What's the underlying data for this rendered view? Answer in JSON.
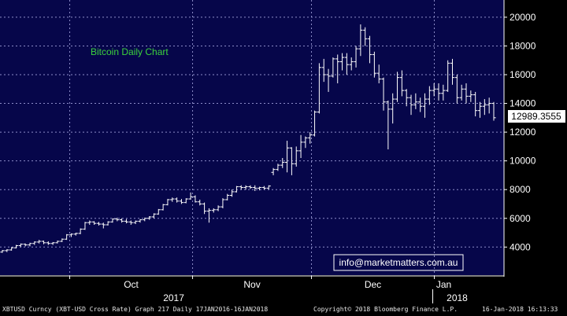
{
  "chart_data": {
    "type": "ohlc",
    "title": "Bitcoin Daily Chart",
    "ylim": [
      2000,
      21000
    ],
    "yticks": [
      4000,
      6000,
      8000,
      10000,
      12000,
      14000,
      16000,
      18000,
      20000
    ],
    "ytick_labels": [
      "4000",
      "6000",
      "8000",
      "10000",
      "12000",
      "14000",
      "16000",
      "18000",
      "20000"
    ],
    "last_price": 12989.3555,
    "last_price_label": "12989.3555",
    "months": [
      "Oct",
      "Nov",
      "Dec",
      "Jan"
    ],
    "years": [
      "2017",
      "2018"
    ],
    "watermark": "info@marketmatters.com.au",
    "date_range": [
      "2017-09-14",
      "2018-01-16"
    ],
    "bars": [
      [
        3650,
        3800,
        3600,
        3750
      ],
      [
        3750,
        3850,
        3650,
        3800
      ],
      [
        3800,
        4000,
        3750,
        3950
      ],
      [
        3950,
        4150,
        3900,
        4100
      ],
      [
        4100,
        4250,
        4000,
        4200
      ],
      [
        4200,
        4250,
        4050,
        4150
      ],
      [
        4150,
        4300,
        4050,
        4250
      ],
      [
        4250,
        4400,
        4150,
        4350
      ],
      [
        4350,
        4500,
        4250,
        4400
      ],
      [
        4400,
        4450,
        4200,
        4300
      ],
      [
        4300,
        4400,
        4150,
        4250
      ],
      [
        4250,
        4350,
        4150,
        4300
      ],
      [
        4300,
        4450,
        4250,
        4400
      ],
      [
        4400,
        4600,
        4350,
        4550
      ],
      [
        4550,
        4900,
        4500,
        4850
      ],
      [
        4850,
        4950,
        4700,
        4900
      ],
      [
        4900,
        5000,
        4800,
        4950
      ],
      [
        4950,
        5300,
        4900,
        5250
      ],
      [
        5250,
        5750,
        5200,
        5700
      ],
      [
        5700,
        5850,
        5550,
        5750
      ],
      [
        5750,
        5800,
        5550,
        5650
      ],
      [
        5650,
        5750,
        5500,
        5600
      ],
      [
        5600,
        5700,
        5300,
        5550
      ],
      [
        5550,
        5800,
        5500,
        5750
      ],
      [
        5750,
        6000,
        5700,
        5950
      ],
      [
        5950,
        6050,
        5800,
        5900
      ],
      [
        5900,
        6000,
        5700,
        5800
      ],
      [
        5800,
        5950,
        5650,
        5750
      ],
      [
        5750,
        5850,
        5550,
        5700
      ],
      [
        5700,
        5850,
        5600,
        5800
      ],
      [
        5800,
        5950,
        5700,
        5900
      ],
      [
        5900,
        6050,
        5800,
        6000
      ],
      [
        6000,
        6150,
        5900,
        6100
      ],
      [
        6100,
        6350,
        6000,
        6300
      ],
      [
        6300,
        6650,
        6250,
        6600
      ],
      [
        6600,
        7000,
        6550,
        6950
      ],
      [
        6950,
        7350,
        6900,
        7300
      ],
      [
        7300,
        7450,
        7150,
        7350
      ],
      [
        7350,
        7450,
        7100,
        7200
      ],
      [
        7200,
        7350,
        7000,
        7100
      ],
      [
        7100,
        7400,
        7050,
        7350
      ],
      [
        7350,
        7800,
        7300,
        7500
      ],
      [
        7500,
        7600,
        7100,
        7150
      ],
      [
        7150,
        7300,
        6900,
        7000
      ],
      [
        7000,
        7100,
        6300,
        6500
      ],
      [
        6500,
        6700,
        5700,
        6550
      ],
      [
        6550,
        6700,
        6400,
        6600
      ],
      [
        6600,
        6900,
        6500,
        6800
      ],
      [
        6800,
        7400,
        6700,
        7300
      ],
      [
        7300,
        7700,
        7250,
        7600
      ],
      [
        7600,
        8000,
        7500,
        7850
      ],
      [
        7850,
        8250,
        7800,
        8200
      ],
      [
        8200,
        8300,
        8000,
        8150
      ],
      [
        8150,
        8300,
        8000,
        8200
      ],
      [
        8200,
        8300,
        8050,
        8150
      ],
      [
        8150,
        8300,
        7900,
        8100
      ],
      [
        8100,
        8200,
        7950,
        8150
      ],
      [
        8150,
        8250,
        8000,
        8100
      ],
      [
        8100,
        8300,
        8000,
        8250
      ],
      [
        9200,
        9500,
        9000,
        9400
      ],
      [
        9400,
        9800,
        9300,
        9700
      ],
      [
        9700,
        10200,
        9500,
        9900
      ],
      [
        9900,
        11400,
        9200,
        10900
      ],
      [
        10900,
        10950,
        9000,
        9800
      ],
      [
        9800,
        11000,
        9600,
        10700
      ],
      [
        10700,
        11800,
        10200,
        11300
      ],
      [
        11300,
        11700,
        10900,
        11600
      ],
      [
        11600,
        12000,
        11200,
        11800
      ],
      [
        11800,
        13500,
        11700,
        13400
      ],
      [
        13400,
        16800,
        13300,
        16500
      ],
      [
        16500,
        17100,
        15500,
        16000
      ],
      [
        16000,
        16400,
        14800,
        15900
      ],
      [
        15900,
        17200,
        15800,
        17100
      ],
      [
        17100,
        17400,
        15400,
        16900
      ],
      [
        16900,
        17500,
        16300,
        17200
      ],
      [
        17200,
        17500,
        16000,
        16700
      ],
      [
        16700,
        17200,
        16300,
        16900
      ],
      [
        16900,
        18000,
        16500,
        17800
      ],
      [
        17800,
        19500,
        17300,
        19100
      ],
      [
        19100,
        19300,
        18000,
        18500
      ],
      [
        18500,
        18700,
        16800,
        17400
      ],
      [
        17400,
        17600,
        15800,
        16100
      ],
      [
        16100,
        16700,
        15400,
        15700
      ],
      [
        15700,
        15800,
        13500,
        14100
      ],
      [
        14100,
        14200,
        10800,
        13600
      ],
      [
        13600,
        14700,
        12600,
        14300
      ],
      [
        14300,
        16200,
        14100,
        15800
      ],
      [
        15800,
        16300,
        14500,
        14900
      ],
      [
        14900,
        15000,
        13800,
        14400
      ],
      [
        14400,
        14600,
        13200,
        13900
      ],
      [
        13900,
        14700,
        13600,
        14100
      ],
      [
        14100,
        14400,
        13400,
        13800
      ],
      [
        13800,
        14700,
        13000,
        14300
      ],
      [
        14300,
        15200,
        13900,
        14900
      ],
      [
        14900,
        15400,
        14500,
        15000
      ],
      [
        15000,
        15400,
        14200,
        14700
      ],
      [
        14700,
        15300,
        14200,
        14900
      ],
      [
        14900,
        17000,
        14800,
        16800
      ],
      [
        16800,
        17100,
        15300,
        15800
      ],
      [
        15800,
        16000,
        14000,
        14400
      ],
      [
        14400,
        15300,
        14200,
        15000
      ],
      [
        15000,
        15400,
        14000,
        14500
      ],
      [
        14500,
        14900,
        14100,
        14600
      ],
      [
        14600,
        14800,
        13100,
        13500
      ],
      [
        13500,
        14100,
        13000,
        13800
      ],
      [
        13800,
        14300,
        13200,
        13900
      ],
      [
        13900,
        14400,
        13300,
        14000
      ],
      [
        14000,
        14100,
        12800,
        13000
      ]
    ]
  },
  "footer": {
    "left": "XBTUSD Curncy (XBT-USD Cross Rate) Graph 217  Daily 17JAN2016-16JAN2018",
    "center": "Copyright© 2018 Bloomberg Finance L.P.",
    "right": "16-Jan-2018 16:13:33"
  },
  "colors": {
    "plot_bg": "#06064a",
    "grid": "#8c8cc8",
    "bars": "#ffffff",
    "axis_bg": "#000000",
    "title": "#3cd23c",
    "last_price_bg": "#ffffff",
    "last_price_text": "#000000",
    "watermark_border": "#ffffff",
    "watermark_text": "#ffffff"
  }
}
